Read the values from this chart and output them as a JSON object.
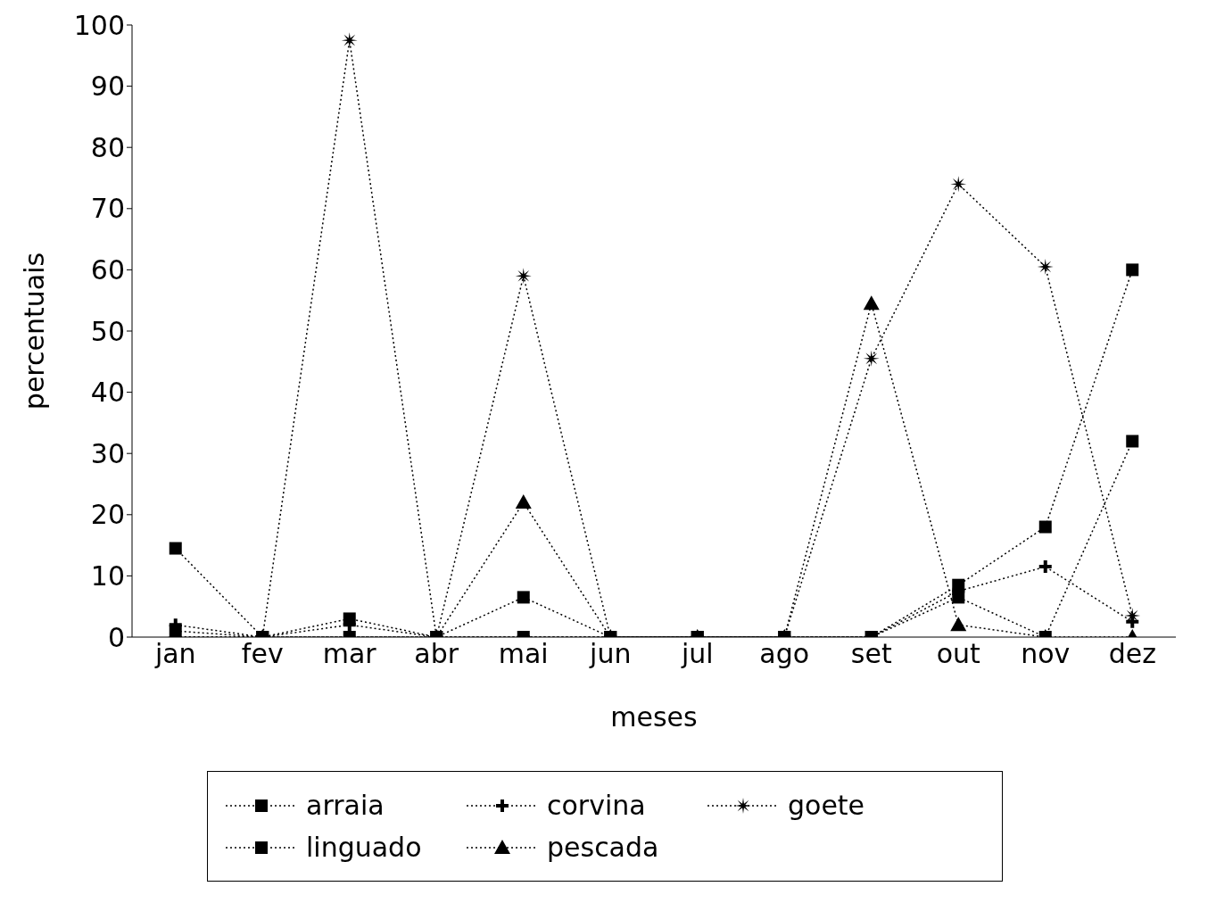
{
  "chart_data": {
    "type": "line",
    "xlabel": "meses",
    "ylabel": "percentuais",
    "categories": [
      "jan",
      "fev",
      "mar",
      "abr",
      "mai",
      "jun",
      "jul",
      "ago",
      "set",
      "out",
      "nov",
      "dez"
    ],
    "series": [
      {
        "name": "arraia",
        "color": "#000000",
        "marker": "square",
        "values": [
          14.5,
          0,
          0,
          0,
          0,
          0,
          0,
          0,
          0,
          6.5,
          0,
          32
        ]
      },
      {
        "name": "corvina",
        "color": "#000000",
        "marker": "cross",
        "values": [
          2,
          0,
          2,
          0,
          0,
          0,
          0,
          0,
          0,
          7.5,
          11.5,
          2.5
        ]
      },
      {
        "name": "goete",
        "color": "#000000",
        "marker": "star",
        "values": [
          0,
          0,
          97.5,
          0,
          59,
          0,
          0,
          0,
          45.5,
          74,
          60.5,
          3.5
        ]
      },
      {
        "name": "linguado",
        "color": "#000000",
        "marker": "square",
        "values": [
          1,
          0,
          3,
          0,
          6.5,
          0,
          0,
          0,
          0,
          8.5,
          18,
          60
        ]
      },
      {
        "name": "pescada",
        "color": "#000000",
        "marker": "triangle",
        "values": [
          0,
          0,
          0,
          0,
          22,
          0,
          0,
          0,
          54.5,
          2,
          0,
          0
        ]
      }
    ],
    "ylim": [
      0,
      100
    ],
    "yticks": [
      0,
      10,
      20,
      30,
      40,
      50,
      60,
      70,
      80,
      90,
      100
    ],
    "legend": "bottom",
    "line_style": "dotted"
  }
}
